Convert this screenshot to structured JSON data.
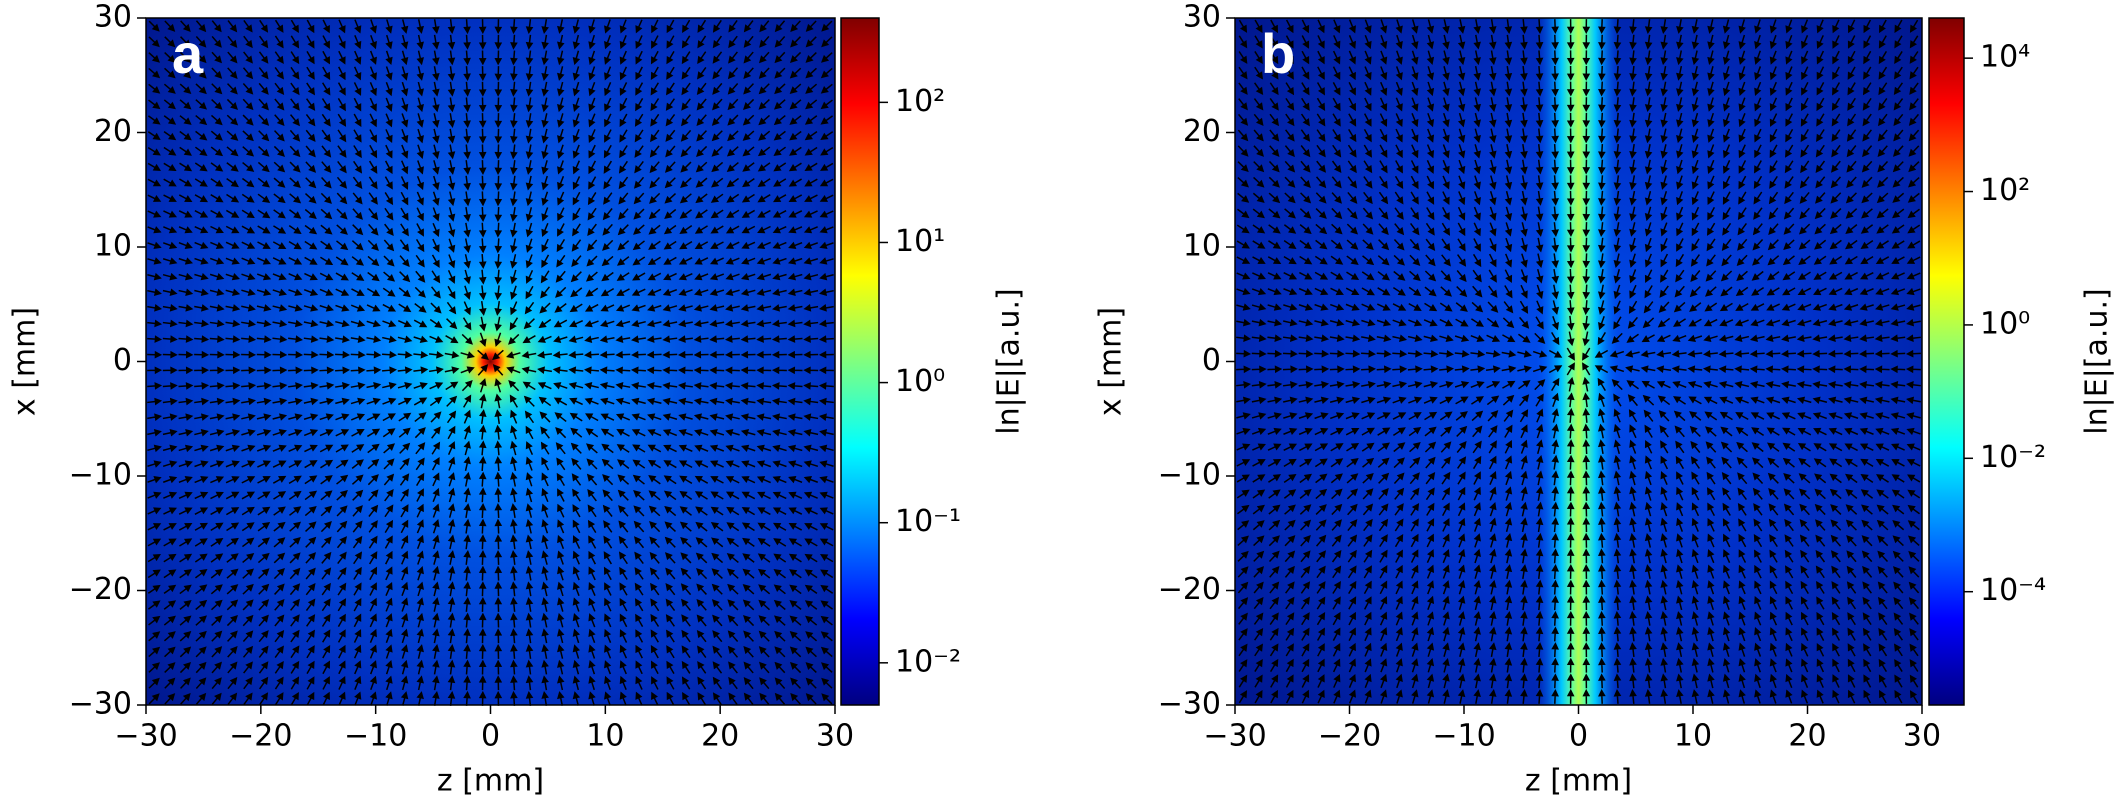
{
  "chart_data": [
    {
      "type": "quiver",
      "panel_label": "a",
      "xlabel": "z [mm]",
      "ylabel": "x [mm]",
      "xlim": [
        -30,
        30
      ],
      "ylim": [
        -30,
        30
      ],
      "xticks": [
        {
          "value": -30,
          "label": "−30"
        },
        {
          "value": -20,
          "label": "−20"
        },
        {
          "value": -10,
          "label": "−10"
        },
        0,
        10,
        20,
        30
      ],
      "yticks": [
        {
          "value": -30,
          "label": "−30"
        },
        {
          "value": -20,
          "label": "−20"
        },
        {
          "value": -10,
          "label": "−10"
        },
        0,
        10,
        20,
        30
      ],
      "colormap": "jet",
      "colorbar": {
        "label": "ln|E|[a.u.]",
        "scale": "log",
        "lim": [
          0.005,
          400
        ],
        "ticks": [
          {
            "value": 0.01,
            "label": "10⁻²"
          },
          {
            "value": 0.1,
            "label": "10⁻¹"
          },
          {
            "value": 1,
            "label": "10⁰"
          },
          {
            "value": 10,
            "label": "10¹"
          },
          {
            "value": 100,
            "label": "10²"
          }
        ]
      }
    },
    {
      "type": "quiver",
      "panel_label": "b",
      "xlabel": "z [mm]",
      "ylabel": "x [mm]",
      "xlim": [
        -30,
        30
      ],
      "ylim": [
        -30,
        30
      ],
      "xticks": [
        {
          "value": -30,
          "label": "−30"
        },
        {
          "value": -20,
          "label": "−20"
        },
        {
          "value": -10,
          "label": "−10"
        },
        0,
        10,
        20,
        30
      ],
      "yticks": [
        {
          "value": -30,
          "label": "−30"
        },
        {
          "value": -20,
          "label": "−20"
        },
        {
          "value": -10,
          "label": "−10"
        },
        0,
        10,
        20,
        30
      ],
      "colormap": "jet",
      "colorbar": {
        "label": "ln|E|[a.u.]",
        "scale": "log",
        "lim": [
          2e-06,
          40000
        ],
        "ticks": [
          {
            "value": 0.0001,
            "label": "10⁻⁴"
          },
          {
            "value": 0.01,
            "label": "10⁻²"
          },
          {
            "value": 1,
            "label": "10⁰"
          },
          {
            "value": 100,
            "label": "10²"
          },
          {
            "value": 10000,
            "label": "10⁴"
          }
        ]
      }
    }
  ]
}
